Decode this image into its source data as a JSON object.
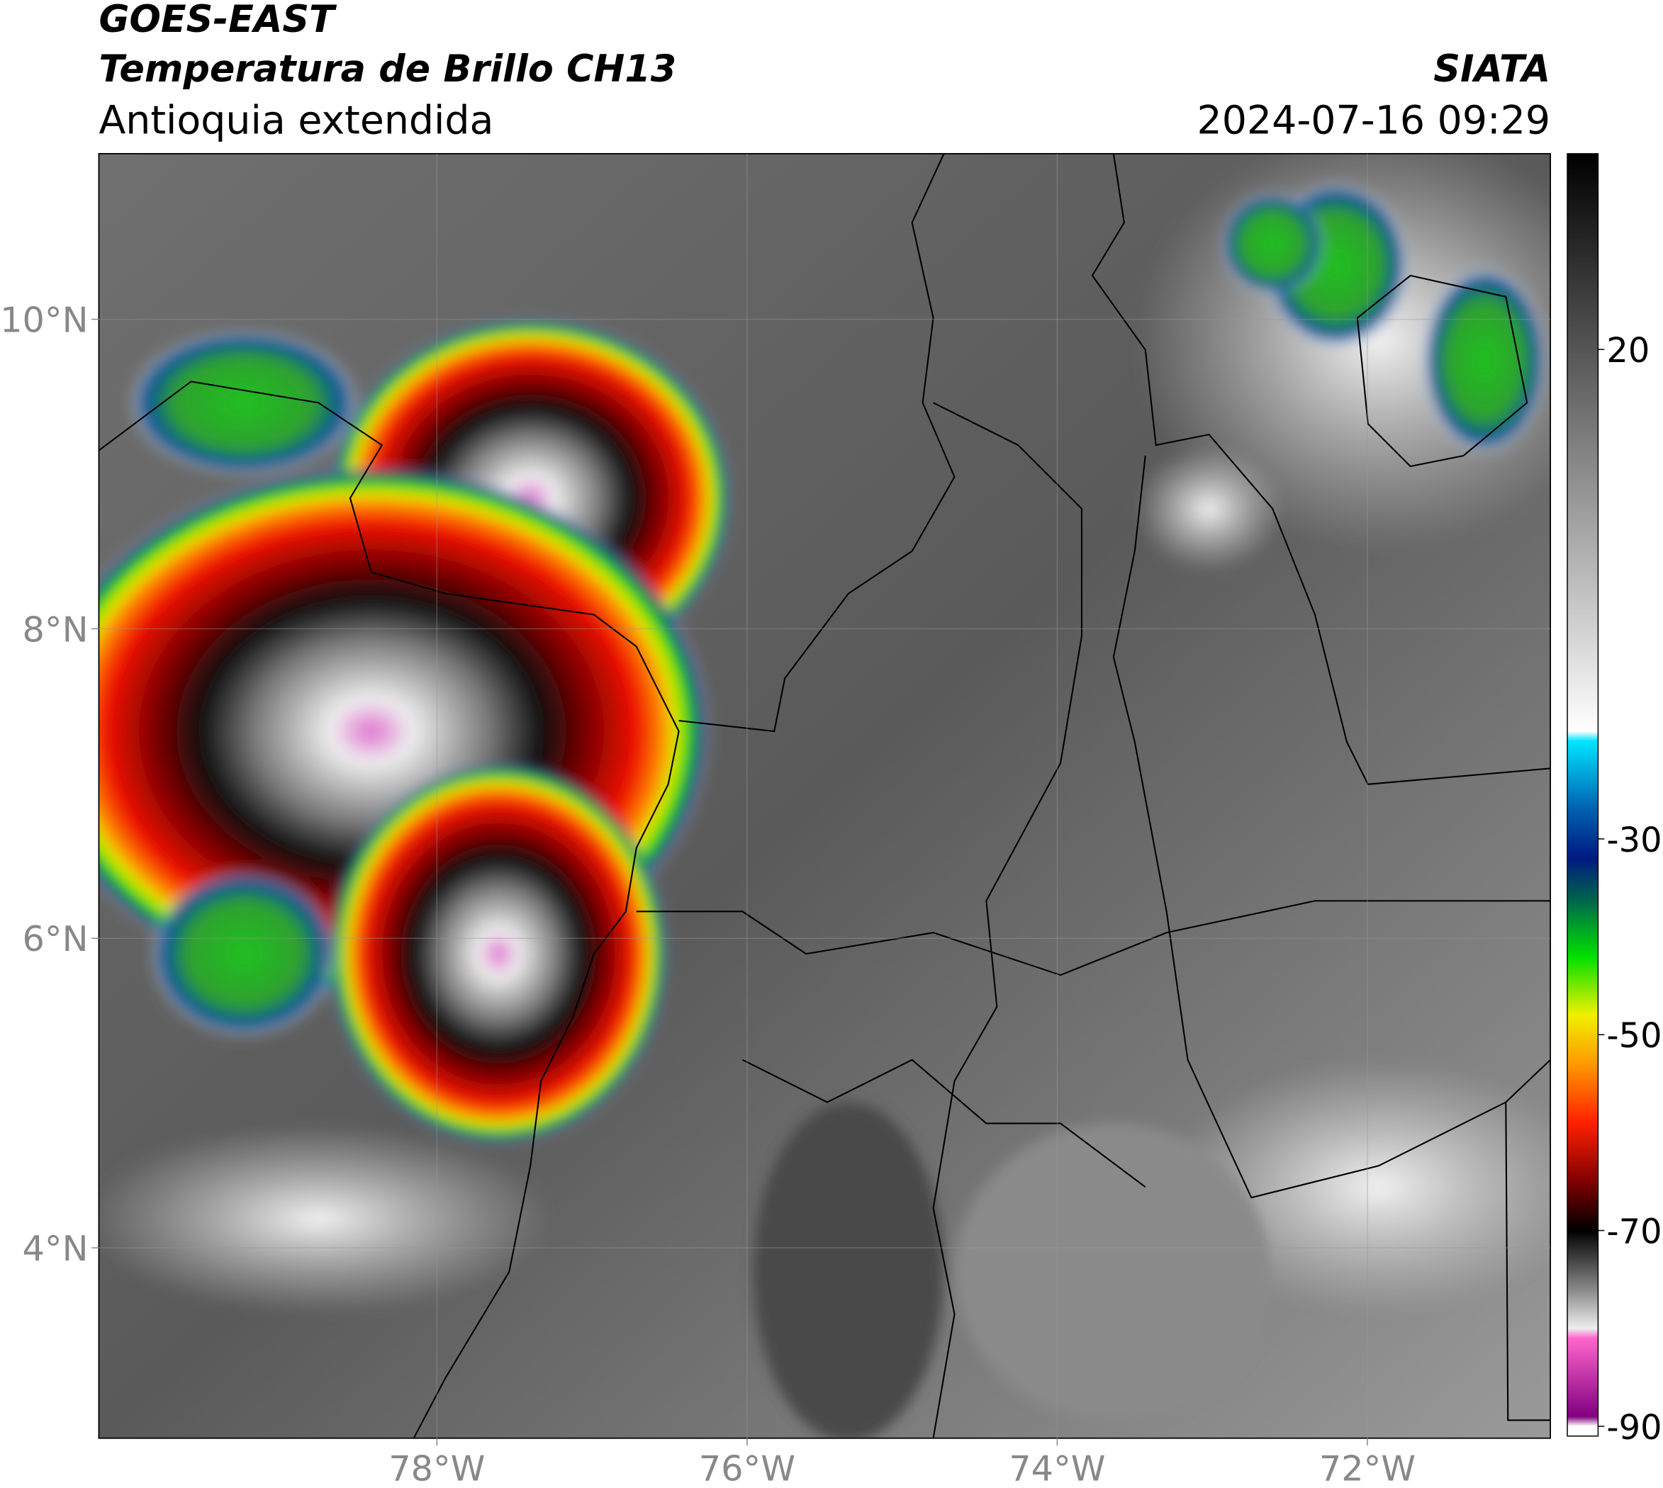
{
  "header": {
    "title": "GOES-EAST",
    "subtitle": "Temperatura de Brillo CH13",
    "region": "Antioquia extendida",
    "source": "SIATA",
    "datetime": "2024-07-16 09:29"
  },
  "map": {
    "xlim": [
      -80.18,
      -70.82
    ],
    "ylim": [
      2.77,
      11.07
    ],
    "xticks": [
      {
        "value": -78,
        "label": "78°W"
      },
      {
        "value": -76,
        "label": "76°W"
      },
      {
        "value": -74,
        "label": "74°W"
      },
      {
        "value": -72,
        "label": "72°W"
      }
    ],
    "yticks": [
      {
        "value": 4,
        "label": "4°N"
      },
      {
        "value": 6,
        "label": "6°N"
      },
      {
        "value": 8,
        "label": "8°N"
      },
      {
        "value": 10,
        "label": "10°N"
      }
    ],
    "grid": true
  },
  "colorbar": {
    "clim": [
      -91,
      40
    ],
    "ticks": [
      20,
      -30,
      -50,
      -70,
      -90
    ],
    "colormap": [
      {
        "value": 40,
        "color": "#000000"
      },
      {
        "value": 20,
        "color": "#555555"
      },
      {
        "value": -19,
        "color": "#ffffff"
      },
      {
        "value": -20,
        "color": "#00e5ff"
      },
      {
        "value": -27,
        "color": "#0060b0"
      },
      {
        "value": -32,
        "color": "#001a80"
      },
      {
        "value": -36,
        "color": "#006050"
      },
      {
        "value": -42,
        "color": "#00e000"
      },
      {
        "value": -48,
        "color": "#f0f000"
      },
      {
        "value": -53,
        "color": "#ff9900"
      },
      {
        "value": -59,
        "color": "#ff2000"
      },
      {
        "value": -65,
        "color": "#800000"
      },
      {
        "value": -70,
        "color": "#000000"
      },
      {
        "value": -76,
        "color": "#888888"
      },
      {
        "value": -80,
        "color": "#eeeeee"
      },
      {
        "value": -81,
        "color": "#ff66cc"
      },
      {
        "value": -89,
        "color": "#800080"
      },
      {
        "value": -90,
        "color": "#ffffff"
      },
      {
        "value": -91,
        "color": "#ffffff"
      }
    ]
  }
}
